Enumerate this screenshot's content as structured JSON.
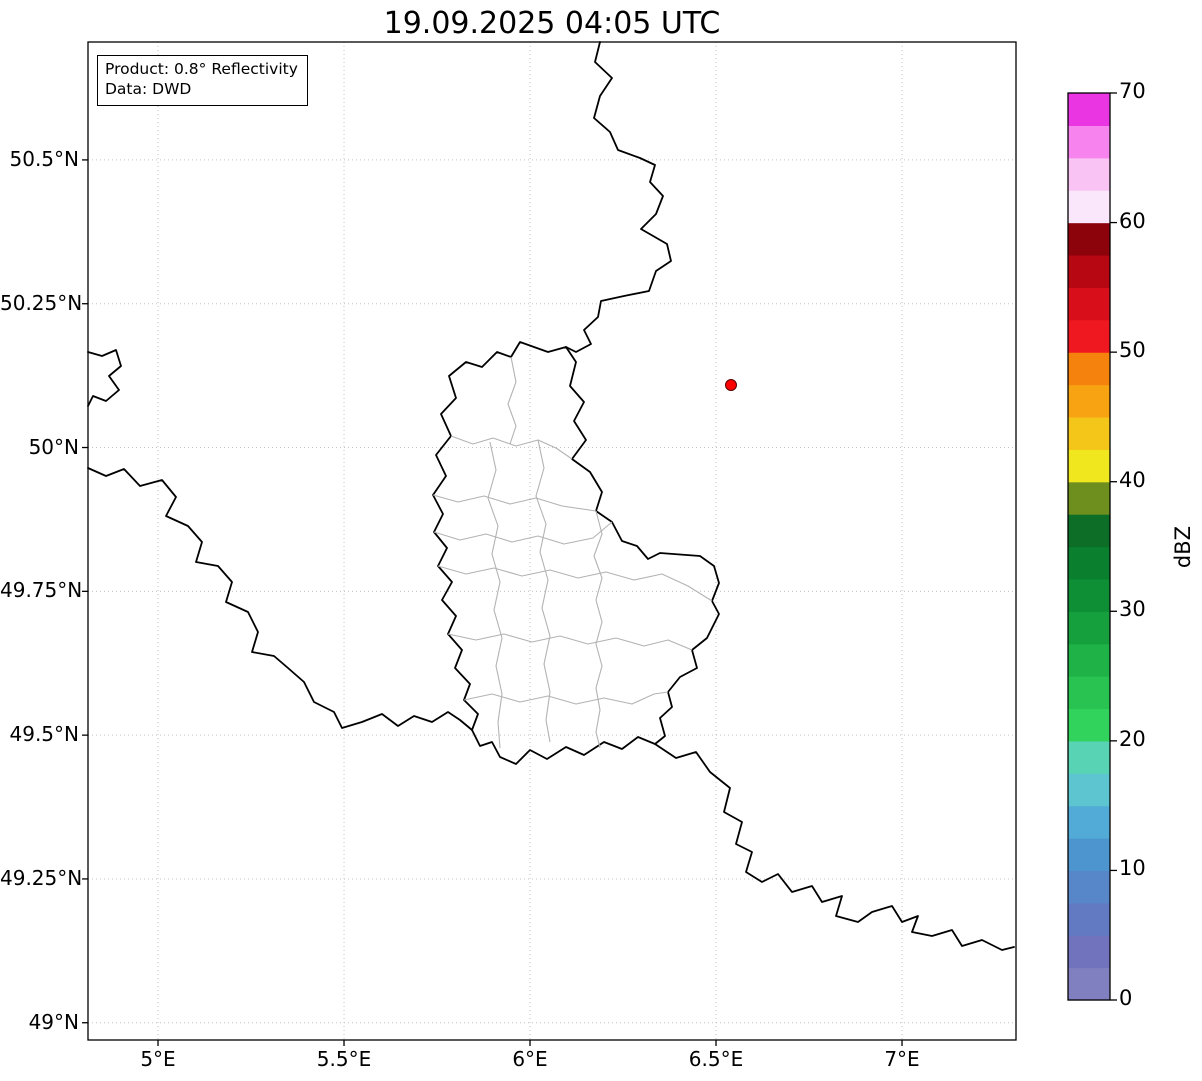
{
  "title": "19.09.2025 04:05 UTC",
  "annotation": {
    "line1": "Product: 0.8° Reflectivity",
    "line2": "Data: DWD"
  },
  "axes": {
    "x_ticks": [
      {
        "value": 5.0,
        "label": "5°E"
      },
      {
        "value": 5.5,
        "label": "5.5°E"
      },
      {
        "value": 6.0,
        "label": "6°E"
      },
      {
        "value": 6.5,
        "label": "6.5°E"
      },
      {
        "value": 7.0,
        "label": "7°E"
      }
    ],
    "y_ticks": [
      {
        "value": 50.5,
        "label": "50.5°N"
      },
      {
        "value": 50.25,
        "label": "50.25°N"
      },
      {
        "value": 50.0,
        "label": "50°N"
      },
      {
        "value": 49.75,
        "label": "49.75°N"
      },
      {
        "value": 49.5,
        "label": "49.5°N"
      },
      {
        "value": 49.25,
        "label": "49.25°N"
      },
      {
        "value": 49.0,
        "label": "49°N"
      }
    ]
  },
  "colorbar": {
    "label": "dBZ",
    "min": 0,
    "max": 70,
    "ticks": [
      0,
      10,
      20,
      30,
      40,
      50,
      60,
      70
    ],
    "colors": [
      "#8080c0",
      "#7173bd",
      "#627ac2",
      "#5787c8",
      "#4d95ce",
      "#51abd6",
      "#5cc5d0",
      "#58d4b4",
      "#32d35c",
      "#28c351",
      "#1eb247",
      "#159f3d",
      "#0e8f35",
      "#0a7f2e",
      "#0c6e27",
      "#6e8f1d",
      "#f0e71f",
      "#f4c619",
      "#f7a312",
      "#f5820c",
      "#f01820",
      "#d80f1a",
      "#b70713",
      "#8d030c",
      "#fbe7fb",
      "#f9c4f4",
      "#f783ee",
      "#ea36e2"
    ]
  },
  "marker": {
    "color": "#ff0000",
    "edge_color": "#550000"
  },
  "map": {
    "border_color": "#000000",
    "district_color": "#b3b3b3",
    "grid_color": "#c3c3c3"
  }
}
